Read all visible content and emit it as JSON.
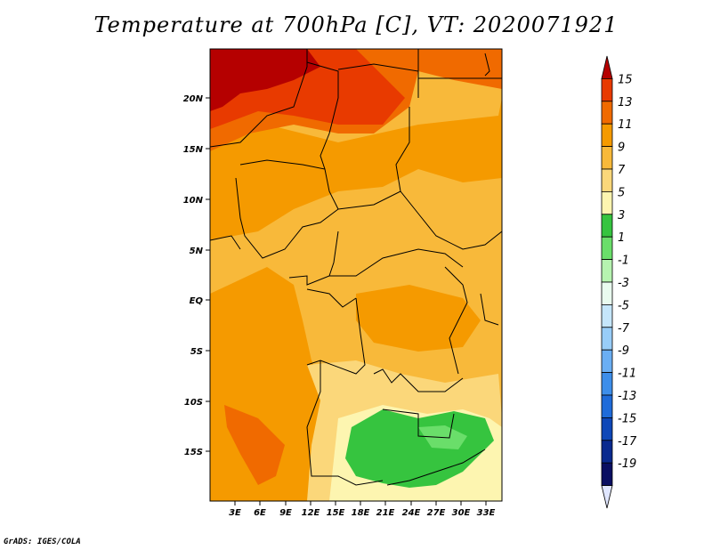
{
  "title": "Temperature at 700hPa [C], VT: 2020071921",
  "credit": "GrADS: IGES/COLA",
  "map": {
    "lat_labels": [
      "20N",
      "15N",
      "10N",
      "5N",
      "EQ",
      "5S",
      "10S",
      "15S"
    ],
    "lon_labels": [
      "3E",
      "6E",
      "9E",
      "12E",
      "15E",
      "18E",
      "21E",
      "24E",
      "27E",
      "30E",
      "33E"
    ]
  },
  "colorbar": {
    "labels": [
      "15",
      "13",
      "11",
      "9",
      "7",
      "5",
      "3",
      "1",
      "-1",
      "-3",
      "-5",
      "-7",
      "-9",
      "-11",
      "-13",
      "-15",
      "-17",
      "-19"
    ],
    "colors": [
      "#b50000",
      "#e83a00",
      "#f06a00",
      "#f59a00",
      "#f8b93a",
      "#fbd77a",
      "#fdf5b0",
      "#36c43f",
      "#6ade6a",
      "#b6f3b0",
      "#e9fbef",
      "#c5e6fb",
      "#98cdf8",
      "#6aaef3",
      "#3d8eea",
      "#1f6bd9",
      "#0e47b8",
      "#0a2a8f",
      "#0a0f62",
      "#e0e6ff"
    ]
  }
}
